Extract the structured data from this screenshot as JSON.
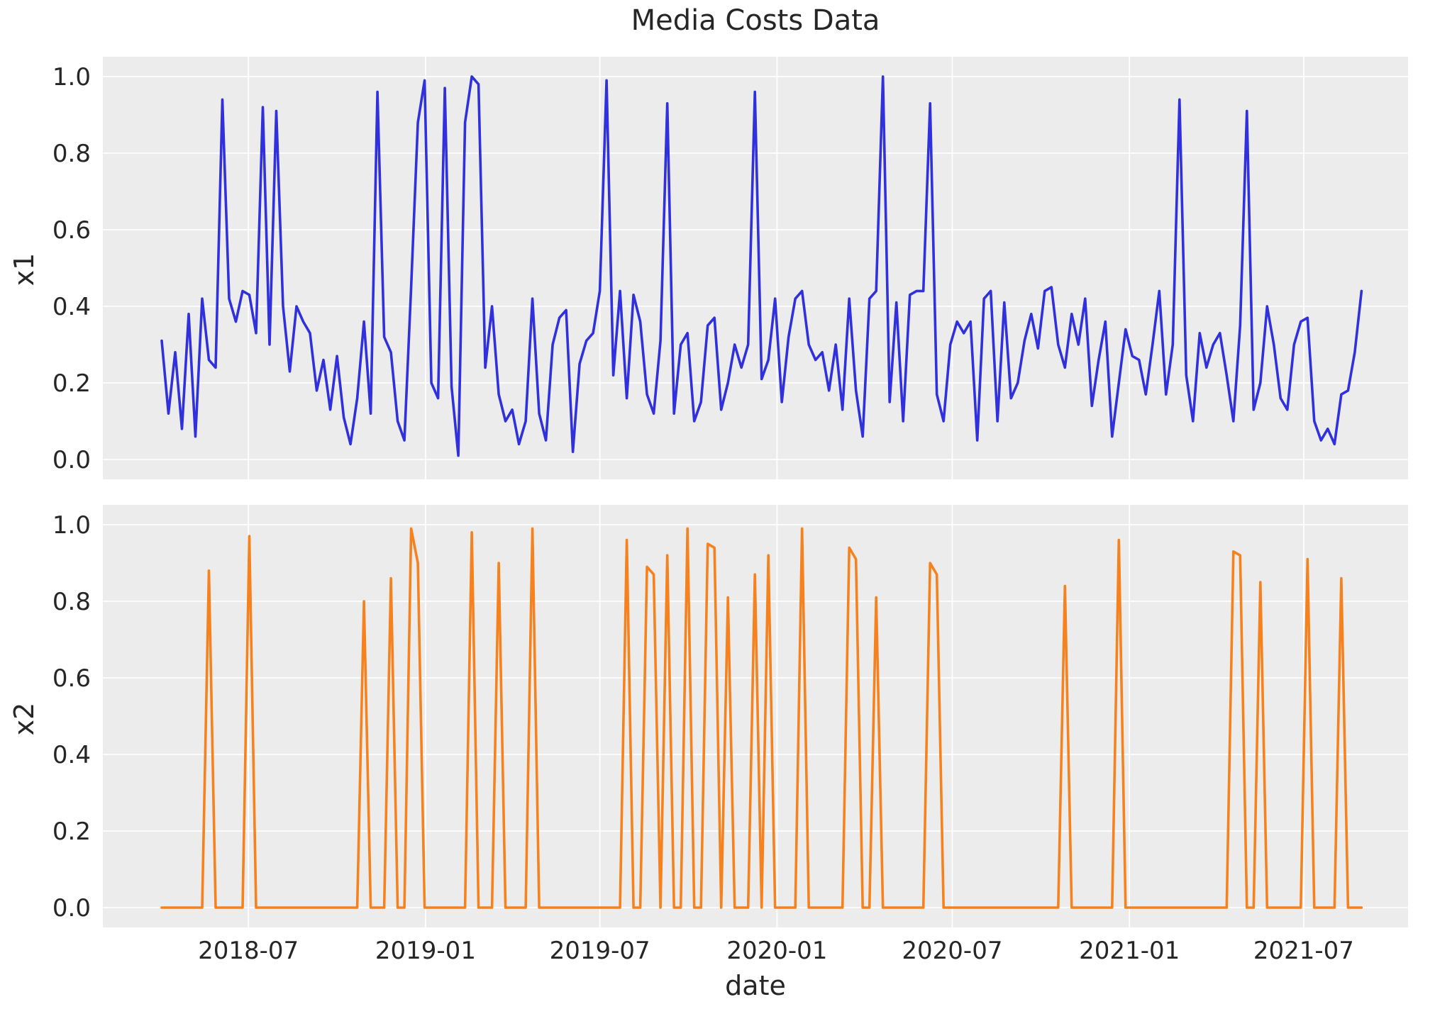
{
  "figure": {
    "title": "Media Costs Data",
    "xlabel": "date",
    "background_color": "#ffffff",
    "axes_background_color": "#ececec",
    "grid_color": "#ffffff",
    "text_color": "#262626"
  },
  "chart_data": [
    {
      "type": "line",
      "ylabel": "x1",
      "line_color": "#3030dc",
      "x_start": "2018-04-02",
      "x_freq_days": 7,
      "x_range": [
        "2018-04-02",
        "2021-08-30"
      ],
      "ylim": [
        -0.05,
        1.05
      ],
      "grid": true,
      "legend": "none",
      "y_ticks": [
        "0.0",
        "0.2",
        "0.4",
        "0.6",
        "0.8",
        "1.0"
      ],
      "x_ticks": [
        {
          "label": "2018-07",
          "date": "2018-07-01"
        },
        {
          "label": "2019-01",
          "date": "2019-01-01"
        },
        {
          "label": "2019-07",
          "date": "2019-07-01"
        },
        {
          "label": "2020-01",
          "date": "2020-01-01"
        },
        {
          "label": "2020-07",
          "date": "2020-07-01"
        },
        {
          "label": "2021-01",
          "date": "2021-01-01"
        },
        {
          "label": "2021-07",
          "date": "2021-07-01"
        }
      ],
      "values": [
        0.31,
        0.12,
        0.28,
        0.08,
        0.38,
        0.06,
        0.42,
        0.26,
        0.24,
        0.94,
        0.42,
        0.36,
        0.44,
        0.43,
        0.33,
        0.92,
        0.3,
        0.91,
        0.4,
        0.23,
        0.4,
        0.36,
        0.33,
        0.18,
        0.26,
        0.13,
        0.27,
        0.11,
        0.04,
        0.16,
        0.36,
        0.12,
        0.96,
        0.32,
        0.28,
        0.1,
        0.05,
        0.45,
        0.88,
        0.99,
        0.2,
        0.16,
        0.97,
        0.19,
        0.01,
        0.88,
        1.0,
        0.98,
        0.24,
        0.4,
        0.17,
        0.1,
        0.13,
        0.04,
        0.1,
        0.42,
        0.12,
        0.05,
        0.3,
        0.37,
        0.39,
        0.02,
        0.25,
        0.31,
        0.33,
        0.44,
        0.99,
        0.22,
        0.44,
        0.16,
        0.43,
        0.36,
        0.17,
        0.12,
        0.31,
        0.93,
        0.12,
        0.3,
        0.33,
        0.1,
        0.15,
        0.35,
        0.37,
        0.13,
        0.2,
        0.3,
        0.24,
        0.3,
        0.96,
        0.21,
        0.26,
        0.42,
        0.15,
        0.32,
        0.42,
        0.44,
        0.3,
        0.26,
        0.28,
        0.18,
        0.3,
        0.13,
        0.42,
        0.18,
        0.06,
        0.42,
        0.44,
        1.0,
        0.15,
        0.41,
        0.1,
        0.43,
        0.44,
        0.44,
        0.93,
        0.17,
        0.1,
        0.3,
        0.36,
        0.33,
        0.36,
        0.05,
        0.42,
        0.44,
        0.1,
        0.41,
        0.16,
        0.2,
        0.31,
        0.38,
        0.29,
        0.44,
        0.45,
        0.3,
        0.24,
        0.38,
        0.3,
        0.42,
        0.14,
        0.26,
        0.36,
        0.06,
        0.2,
        0.34,
        0.27,
        0.26,
        0.17,
        0.3,
        0.44,
        0.17,
        0.3,
        0.94,
        0.22,
        0.1,
        0.33,
        0.24,
        0.3,
        0.33,
        0.22,
        0.1,
        0.35,
        0.91,
        0.13,
        0.2,
        0.4,
        0.3,
        0.16,
        0.13,
        0.3,
        0.36,
        0.37,
        0.1,
        0.05,
        0.08,
        0.04,
        0.17,
        0.18,
        0.28,
        0.44
      ]
    },
    {
      "type": "line",
      "ylabel": "x2",
      "line_color": "#f5821e",
      "x_start": "2018-04-02",
      "x_freq_days": 7,
      "x_range": [
        "2018-04-02",
        "2021-08-30"
      ],
      "ylim": [
        -0.05,
        1.05
      ],
      "grid": true,
      "legend": "none",
      "y_ticks": [
        "0.0",
        "0.2",
        "0.4",
        "0.6",
        "0.8",
        "1.0"
      ],
      "x_ticks": [
        {
          "label": "2018-07",
          "date": "2018-07-01"
        },
        {
          "label": "2019-01",
          "date": "2019-01-01"
        },
        {
          "label": "2019-07",
          "date": "2019-07-01"
        },
        {
          "label": "2020-01",
          "date": "2020-01-01"
        },
        {
          "label": "2020-07",
          "date": "2020-07-01"
        },
        {
          "label": "2021-01",
          "date": "2021-01-01"
        },
        {
          "label": "2021-07",
          "date": "2021-07-01"
        }
      ],
      "values": [
        0,
        0,
        0,
        0,
        0,
        0,
        0,
        0.88,
        0,
        0,
        0,
        0,
        0,
        0.97,
        0,
        0,
        0,
        0,
        0,
        0,
        0,
        0,
        0,
        0,
        0,
        0,
        0,
        0,
        0,
        0,
        0.8,
        0,
        0,
        0,
        0.86,
        0,
        0,
        0.99,
        0.9,
        0,
        0,
        0,
        0,
        0,
        0,
        0,
        0.98,
        0,
        0,
        0,
        0.9,
        0,
        0,
        0,
        0,
        0.99,
        0,
        0,
        0,
        0,
        0,
        0,
        0,
        0,
        0,
        0,
        0,
        0,
        0,
        0.96,
        0,
        0,
        0.89,
        0.87,
        0,
        0.92,
        0,
        0,
        0.99,
        0,
        0,
        0.95,
        0.94,
        0,
        0.81,
        0,
        0,
        0,
        0.87,
        0,
        0.92,
        0,
        0,
        0,
        0,
        0.99,
        0,
        0,
        0,
        0,
        0,
        0,
        0.94,
        0.91,
        0,
        0,
        0.81,
        0,
        0,
        0,
        0,
        0,
        0,
        0,
        0.9,
        0.87,
        0,
        0,
        0,
        0,
        0,
        0,
        0,
        0,
        0,
        0,
        0,
        0,
        0,
        0,
        0,
        0,
        0,
        0,
        0.84,
        0,
        0,
        0,
        0,
        0,
        0,
        0,
        0.96,
        0,
        0,
        0,
        0,
        0,
        0,
        0,
        0,
        0,
        0,
        0,
        0,
        0,
        0,
        0,
        0,
        0.93,
        0.92,
        0,
        0,
        0.85,
        0,
        0,
        0,
        0,
        0,
        0,
        0.91,
        0,
        0,
        0,
        0,
        0.86,
        0,
        0,
        0
      ]
    }
  ]
}
